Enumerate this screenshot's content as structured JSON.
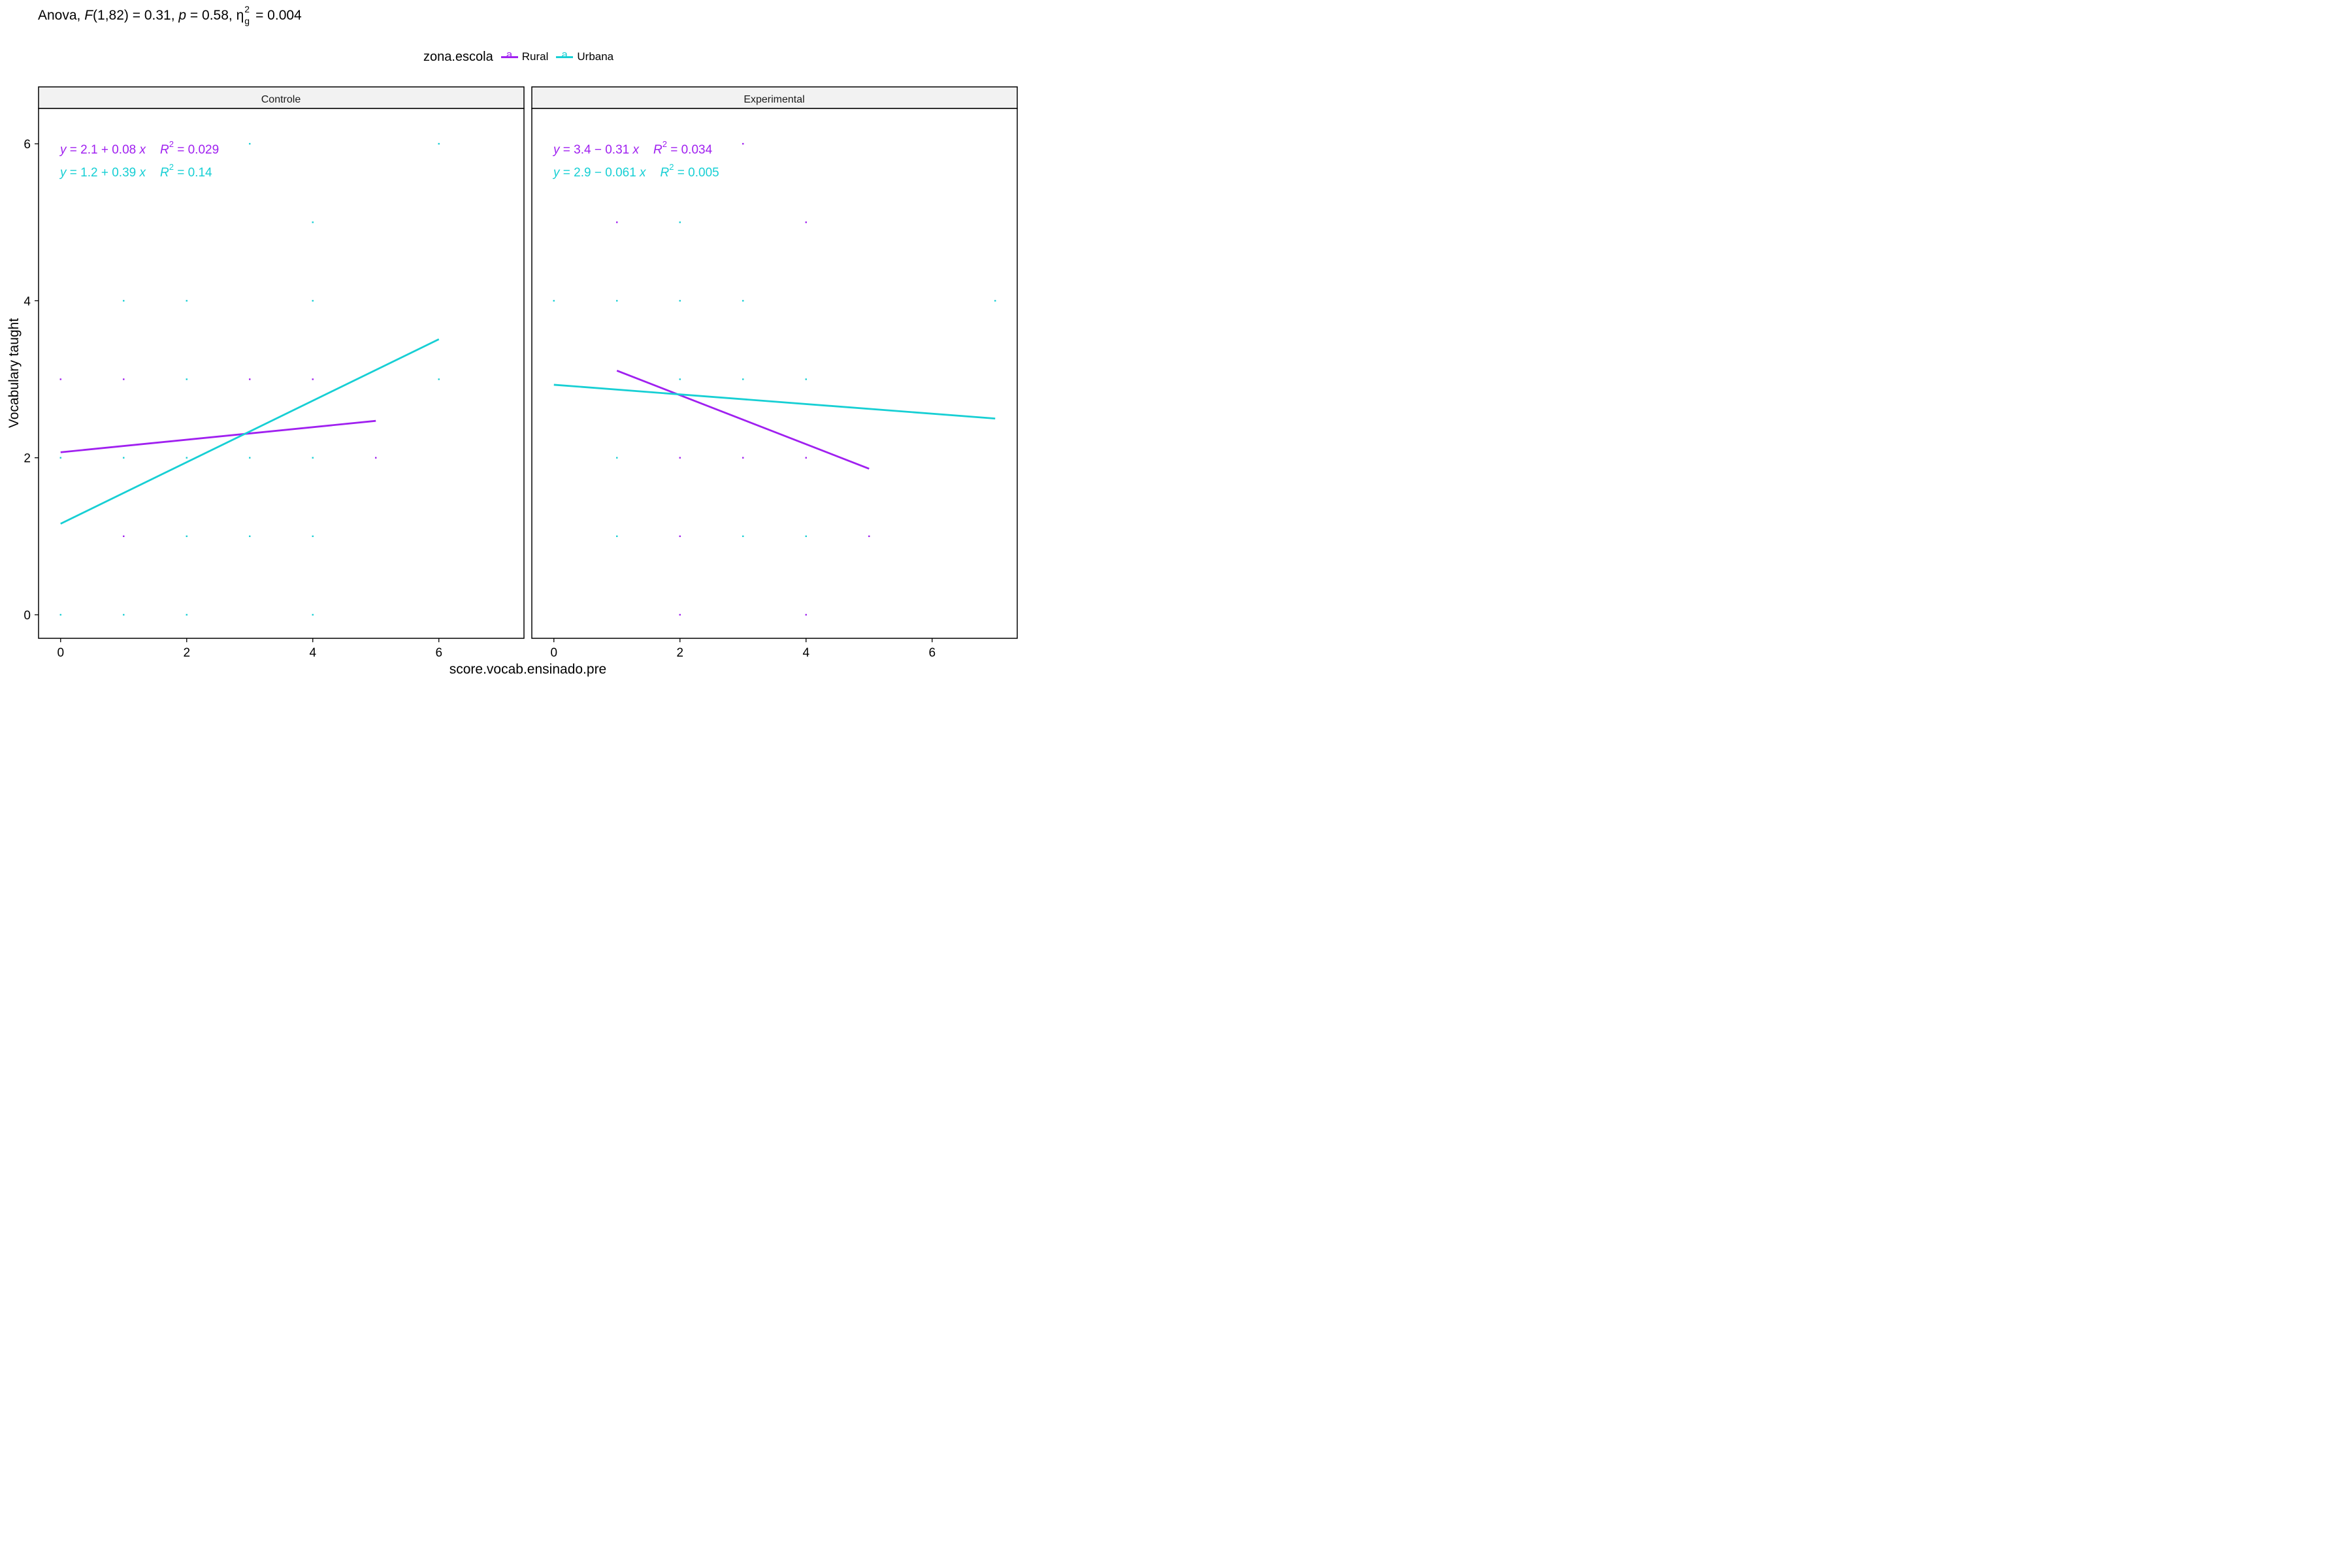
{
  "subtitle": {
    "prefix": "Anova, ",
    "f": "F",
    "df": "(1,82) = 0.31, ",
    "p": "p",
    "p_val": " = 0.58, ",
    "eta": "η",
    "eta_sup": "2",
    "eta_sub": "g",
    "eta_val": " = 0.004"
  },
  "legend": {
    "title": "zona.escola",
    "key_glyph": "a",
    "items": [
      {
        "label": "Rural",
        "color": "#a020f0"
      },
      {
        "label": "Urbana",
        "color": "#17cfd4"
      }
    ]
  },
  "colors": {
    "Rural": "#a020f0",
    "Urbana": "#17cfd4"
  },
  "chart_data": {
    "type": "scatter",
    "xlabel": "score.vocab.ensinado.pre",
    "ylabel": "Vocabulary taught",
    "y_ticks": [
      0,
      2,
      4,
      6
    ],
    "x_ticks": [
      0,
      2,
      4,
      6
    ],
    "ylim": [
      -0.3,
      6.45
    ],
    "grid": false,
    "legend_position": "top",
    "facets": [
      {
        "name": "Controle",
        "xlim": [
          -0.35,
          7.35
        ],
        "series": [
          {
            "name": "Rural",
            "points": [
              [
                0,
                3
              ],
              [
                1,
                3
              ],
              [
                1,
                1
              ],
              [
                3,
                3
              ],
              [
                4,
                3
              ],
              [
                5,
                2
              ]
            ],
            "fit": {
              "x": [
                0,
                5
              ],
              "y": [
                2.07,
                2.47
              ]
            },
            "eq": {
              "a": "y",
              "b": " = 2.1 + 0.08 ",
              "c": "x",
              "d": "R",
              "e": "2",
              "f": " = 0.029"
            }
          },
          {
            "name": "Urbana",
            "points": [
              [
                0,
                2
              ],
              [
                0,
                0
              ],
              [
                1,
                4
              ],
              [
                1,
                2
              ],
              [
                1,
                0
              ],
              [
                2,
                4
              ],
              [
                2,
                3
              ],
              [
                2,
                2
              ],
              [
                2,
                1
              ],
              [
                2,
                0
              ],
              [
                3,
                6
              ],
              [
                3,
                2
              ],
              [
                3,
                1
              ],
              [
                4,
                5
              ],
              [
                4,
                4
              ],
              [
                4,
                2
              ],
              [
                4,
                1
              ],
              [
                4,
                0
              ],
              [
                6,
                6
              ],
              [
                6,
                3
              ]
            ],
            "fit": {
              "x": [
                0,
                6
              ],
              "y": [
                1.16,
                3.51
              ]
            },
            "eq": {
              "a": "y",
              "b": " = 1.2 + 0.39 ",
              "c": "x",
              "d": "R",
              "e": "2",
              "f": " = 0.14"
            }
          }
        ]
      },
      {
        "name": "Experimental",
        "xlim": [
          -0.35,
          7.35
        ],
        "series": [
          {
            "name": "Rural",
            "points": [
              [
                1,
                5
              ],
              [
                2,
                2
              ],
              [
                2,
                1
              ],
              [
                2,
                0
              ],
              [
                3,
                6
              ],
              [
                3,
                2
              ],
              [
                4,
                5
              ],
              [
                4,
                2
              ],
              [
                4,
                0
              ],
              [
                5,
                1
              ]
            ],
            "fit": {
              "x": [
                1,
                5
              ],
              "y": [
                3.11,
                1.86
              ]
            },
            "eq": {
              "a": "y",
              "b": " = 3.4 − 0.31 ",
              "c": "x",
              "d": "R",
              "e": "2",
              "f": " = 0.034"
            }
          },
          {
            "name": "Urbana",
            "points": [
              [
                0,
                4
              ],
              [
                1,
                4
              ],
              [
                1,
                2
              ],
              [
                1,
                1
              ],
              [
                2,
                5
              ],
              [
                2,
                4
              ],
              [
                2,
                3
              ],
              [
                3,
                4
              ],
              [
                3,
                3
              ],
              [
                3,
                1
              ],
              [
                4,
                3
              ],
              [
                4,
                1
              ],
              [
                7,
                4
              ]
            ],
            "fit": {
              "x": [
                0,
                7
              ],
              "y": [
                2.93,
                2.5
              ]
            },
            "eq": {
              "a": "y",
              "b": " = 2.9 − 0.061 ",
              "c": "x",
              "d": "R",
              "e": "2",
              "f": " = 0.005"
            }
          }
        ]
      }
    ]
  }
}
